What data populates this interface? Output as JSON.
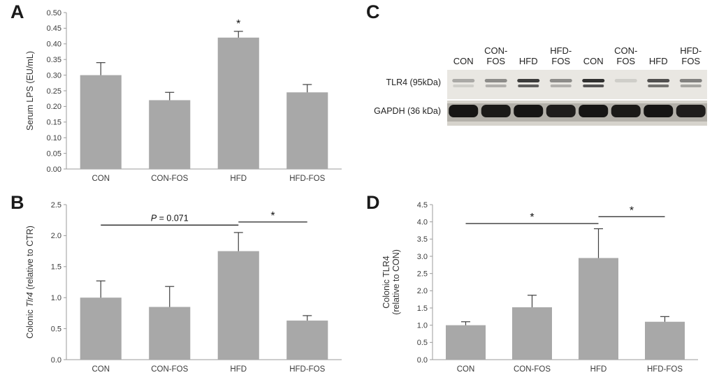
{
  "figure": {
    "background": "#ffffff",
    "panels": [
      {
        "label": "A"
      },
      {
        "label": "B"
      },
      {
        "label": "C"
      },
      {
        "label": "D"
      }
    ]
  },
  "chart_data": [
    {
      "id": "A",
      "type": "bar",
      "title": "",
      "xlabel": "",
      "ylabel_lines": [
        [
          {
            "t": "Serum LPS (EU/mL)"
          }
        ]
      ],
      "categories": [
        "CON",
        "CON-FOS",
        "HFD",
        "HFD-FOS"
      ],
      "values": [
        0.3,
        0.22,
        0.42,
        0.245
      ],
      "errors": [
        0.04,
        0.025,
        0.02,
        0.025
      ],
      "ylim": [
        0,
        0.5
      ],
      "ytick_step": 0.05,
      "y_decimals": 2,
      "bar_color": "#a8a8a8",
      "grid": false,
      "legend": "none",
      "annotations": [
        {
          "kind": "bar-star",
          "bar": 2,
          "text": "*"
        }
      ]
    },
    {
      "id": "B",
      "type": "bar",
      "title": "",
      "xlabel": "",
      "ylabel_lines": [
        [
          {
            "t": "Colonic "
          },
          {
            "t": "Tlr4",
            "i": true
          },
          {
            "t": " (relative to CTR)"
          }
        ]
      ],
      "categories": [
        "CON",
        "CON-FOS",
        "HFD",
        "HFD-FOS"
      ],
      "values": [
        1.0,
        0.85,
        1.75,
        0.63
      ],
      "errors": [
        0.27,
        0.33,
        0.3,
        0.08
      ],
      "ylim": [
        0,
        2.5
      ],
      "ytick_step": 0.5,
      "y_decimals": 1,
      "bar_color": "#a8a8a8",
      "grid": false,
      "legend": "none",
      "annotations": [
        {
          "kind": "bracket",
          "from": 0,
          "to": 2,
          "y": 2.17,
          "text_i": "P",
          "text": " = 0.071"
        },
        {
          "kind": "bracket",
          "from": 2,
          "to": 3,
          "y": 2.22,
          "text": "*"
        }
      ]
    },
    {
      "id": "D",
      "type": "bar",
      "title": "",
      "xlabel": "",
      "ylabel_lines": [
        [
          {
            "t": "Colonic TLR4"
          }
        ],
        [
          {
            "t": "(relative to CON)"
          }
        ]
      ],
      "categories": [
        "CON",
        "CON-FOS",
        "HFD",
        "HFD-FOS"
      ],
      "values": [
        1.0,
        1.52,
        2.95,
        1.1
      ],
      "errors": [
        0.1,
        0.35,
        0.85,
        0.15
      ],
      "ylim": [
        0,
        4.5
      ],
      "ytick_step": 0.5,
      "y_decimals": 1,
      "bar_color": "#a8a8a8",
      "grid": false,
      "legend": "none",
      "annotations": [
        {
          "kind": "bracket",
          "from": 0,
          "to": 2,
          "y": 3.95,
          "text": "*"
        },
        {
          "kind": "bracket",
          "from": 2,
          "to": 3,
          "y": 4.15,
          "text": "*"
        }
      ]
    }
  ],
  "blot": {
    "lane_labels": [
      [
        "CON"
      ],
      [
        "CON-",
        "FOS"
      ],
      [
        "HFD"
      ],
      [
        "HFD-",
        "FOS"
      ],
      [
        "CON"
      ],
      [
        "CON-",
        "FOS"
      ],
      [
        "HFD"
      ],
      [
        "HFD-",
        "FOS"
      ]
    ],
    "rows": [
      {
        "label": "TLR4 (95kDa)",
        "intensities": [
          0.3,
          0.45,
          0.85,
          0.45,
          0.9,
          0.12,
          0.75,
          0.5
        ]
      },
      {
        "label": "GAPDH (36 kDa)",
        "intensities": [
          0.95,
          0.92,
          0.95,
          0.9,
          0.95,
          0.92,
          0.95,
          0.9
        ]
      }
    ]
  }
}
